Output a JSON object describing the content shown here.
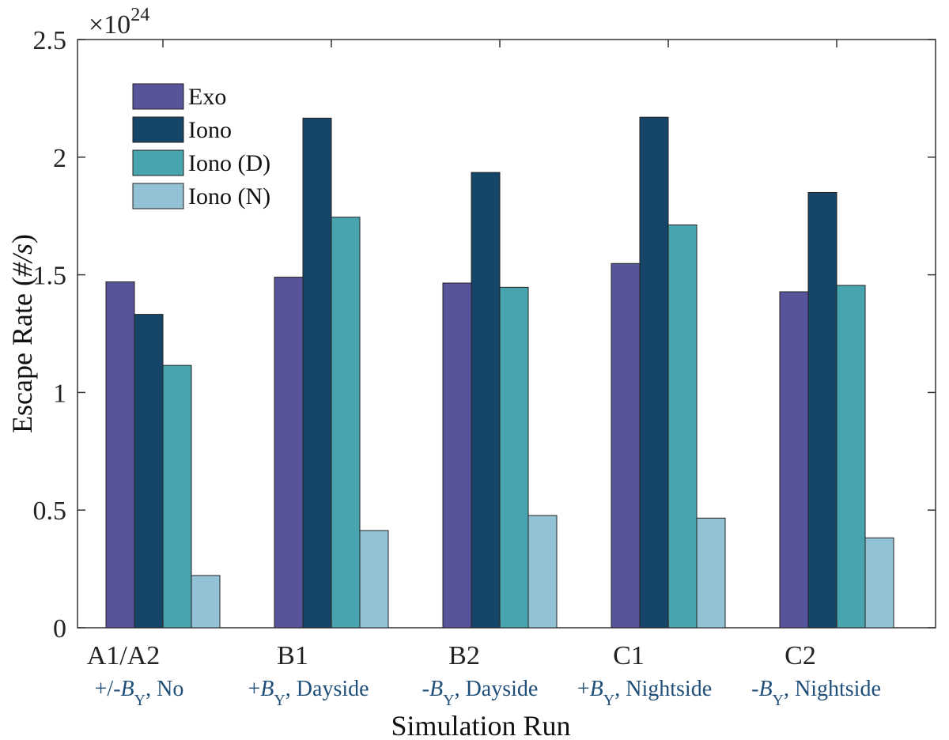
{
  "chart_data": {
    "type": "bar",
    "title": "",
    "xlabel": "Simulation Run",
    "ylabel_prefix": "Escape Rate (",
    "ylabel_unit": "#/s",
    "ylabel_suffix": ")",
    "exponent_label": "×10",
    "exponent_power": "24",
    "ylim": [
      0,
      2.5
    ],
    "yticks": [
      "0",
      "0.5",
      "1",
      "1.5",
      "2",
      "2.5"
    ],
    "ytick_values": [
      0,
      0.5,
      1,
      1.5,
      2,
      2.5
    ],
    "categories": [
      "A1/A2",
      "B1",
      "B2",
      "C1",
      "C2"
    ],
    "subcategories": [
      {
        "prefix": "+/-",
        "var": "B",
        "sub": "Y",
        "suffix": ", No"
      },
      {
        "prefix": "+",
        "var": "B",
        "sub": "Y",
        "suffix": ", Dayside"
      },
      {
        "prefix": "-",
        "var": "B",
        "sub": "Y",
        "suffix": ", Dayside"
      },
      {
        "prefix": "+",
        "var": "B",
        "sub": "Y",
        "suffix": ", Nightside"
      },
      {
        "prefix": "-",
        "var": "B",
        "sub": "Y",
        "suffix": ", Nightside"
      }
    ],
    "series": [
      {
        "name": "Exo",
        "color": "#58549b",
        "values": [
          1.47,
          1.49,
          1.465,
          1.548,
          1.428
        ]
      },
      {
        "name": "Iono",
        "color": "#15466a",
        "values": [
          1.332,
          2.166,
          1.935,
          2.17,
          1.85
        ]
      },
      {
        "name": "Iono (D)",
        "color": "#48a5b0",
        "values": [
          1.115,
          1.745,
          1.447,
          1.712,
          1.455
        ]
      },
      {
        "name": "Iono (N)",
        "color": "#93c1d6",
        "values": [
          0.222,
          0.413,
          0.477,
          0.466,
          0.382
        ]
      }
    ],
    "legend_position": "top-left"
  }
}
